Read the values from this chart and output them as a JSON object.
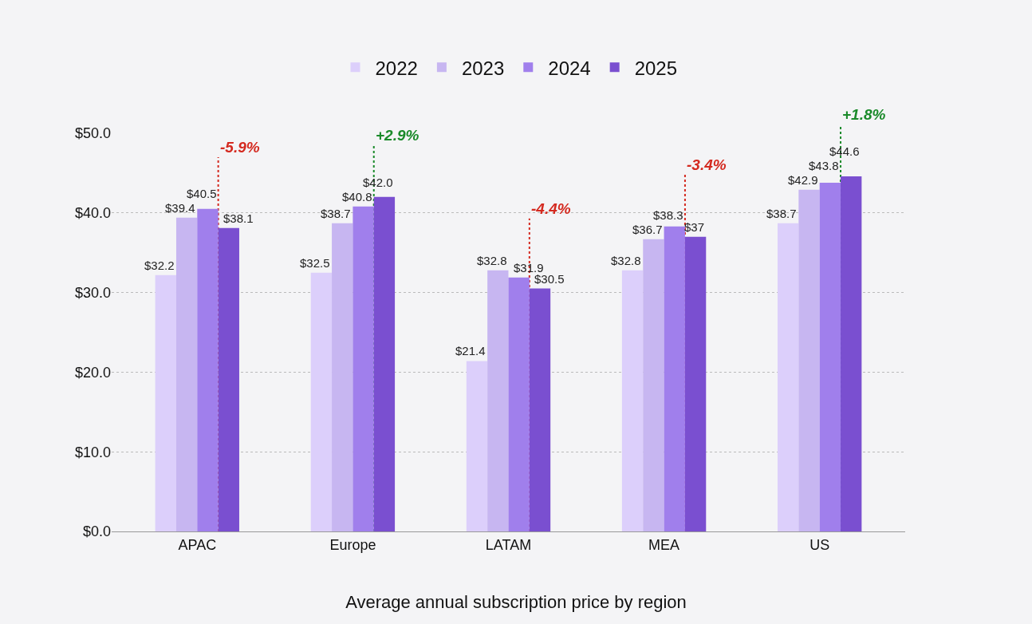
{
  "chart_data": {
    "type": "bar",
    "title": "Average annual subscription price by region",
    "categories": [
      "APAC",
      "Europe",
      "LATAM",
      "MEA",
      "US"
    ],
    "series": [
      {
        "name": "2022",
        "color": "#dccffb",
        "values": [
          32.2,
          32.5,
          21.4,
          32.8,
          38.7
        ],
        "value_labels": [
          "$32.2",
          "$32.5",
          "$21.4",
          "$32.8",
          "$38.7"
        ]
      },
      {
        "name": "2023",
        "color": "#c7b6f1",
        "values": [
          39.4,
          38.7,
          32.8,
          36.7,
          42.9
        ],
        "value_labels": [
          "$39.4",
          "$38.7",
          "$32.8",
          "$36.7",
          "$42.9"
        ]
      },
      {
        "name": "2024",
        "color": "#a07fec",
        "values": [
          40.5,
          40.8,
          31.9,
          38.3,
          43.8
        ],
        "value_labels": [
          "$40.5",
          "$40.8",
          "$31.9",
          "$38.3",
          "$43.8"
        ]
      },
      {
        "name": "2025",
        "color": "#7a4fd0",
        "values": [
          38.1,
          42.0,
          30.5,
          37,
          44.6
        ],
        "value_labels": [
          "$38.1",
          "$42.0",
          "$30.5",
          "$37",
          "$44.6"
        ]
      }
    ],
    "ref_lines": [
      {
        "axis": "x",
        "value": "APAC",
        "label": "-5.9%",
        "color": "#d42a20",
        "line_style": "dotted"
      },
      {
        "axis": "x",
        "value": "Europe",
        "label": "+2.9%",
        "color": "#1a8a2a",
        "line_style": "dotted"
      },
      {
        "axis": "x",
        "value": "LATAM",
        "label": "-4.4%",
        "color": "#d42a20",
        "line_style": "dotted"
      },
      {
        "axis": "x",
        "value": "MEA",
        "label": "-3.4%",
        "color": "#d42a20",
        "line_style": "dotted"
      },
      {
        "axis": "x",
        "value": "US",
        "label": "+1.8%",
        "color": "#1a8a2a",
        "line_style": "dotted"
      }
    ],
    "ylim": [
      0,
      50
    ],
    "yticks": [
      {
        "value": 0,
        "label": "$0.0"
      },
      {
        "value": 10,
        "label": "$10.0"
      },
      {
        "value": 20,
        "label": "$20.0"
      },
      {
        "value": 30,
        "label": "$30.0"
      },
      {
        "value": 40,
        "label": "$40.0"
      },
      {
        "value": 50,
        "label": "$50.0"
      }
    ],
    "grid": "y",
    "legend": "top"
  }
}
